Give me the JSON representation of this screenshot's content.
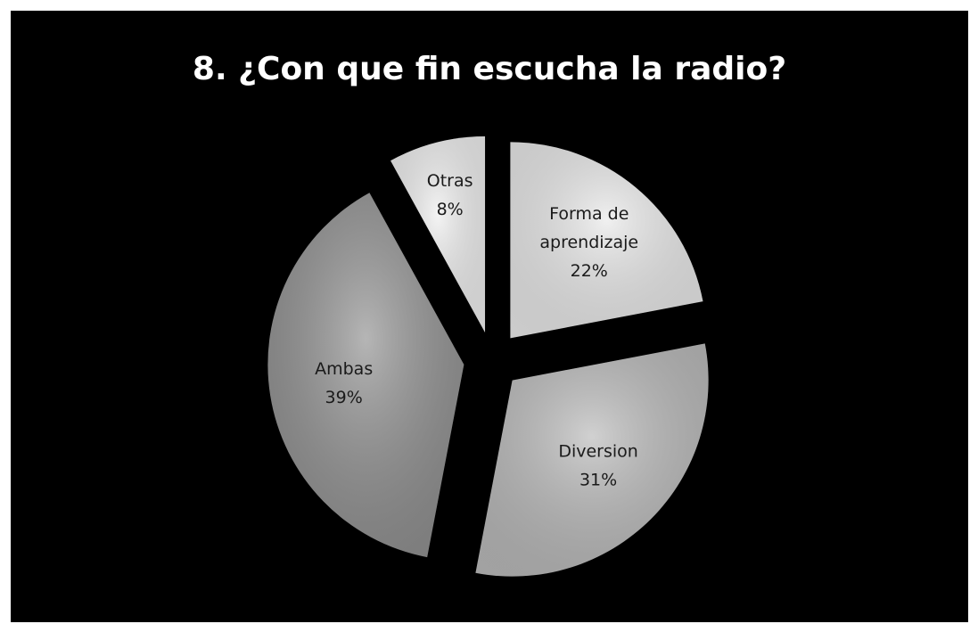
{
  "chart_data": {
    "type": "pie",
    "title": "8. ¿Con que fin escucha la radio?",
    "slices": [
      {
        "name": "Forma de aprendizaje",
        "label_lines": [
          "Forma de",
          "aprendizaje"
        ],
        "value": 22,
        "value_label": "22%",
        "color": "#e8e8e8"
      },
      {
        "name": "Diversion",
        "label_lines": [
          "Diversion"
        ],
        "value": 31,
        "value_label": "31%",
        "color": "#b8b8b8"
      },
      {
        "name": "Ambas",
        "label_lines": [
          "Ambas"
        ],
        "value": 39,
        "value_label": "39%",
        "color": "#8e8e8e"
      },
      {
        "name": "Otras",
        "label_lines": [
          "Otras"
        ],
        "value": 8,
        "value_label": "8%",
        "color": "#eeeeee"
      }
    ],
    "exploded": true,
    "legend": "none"
  }
}
